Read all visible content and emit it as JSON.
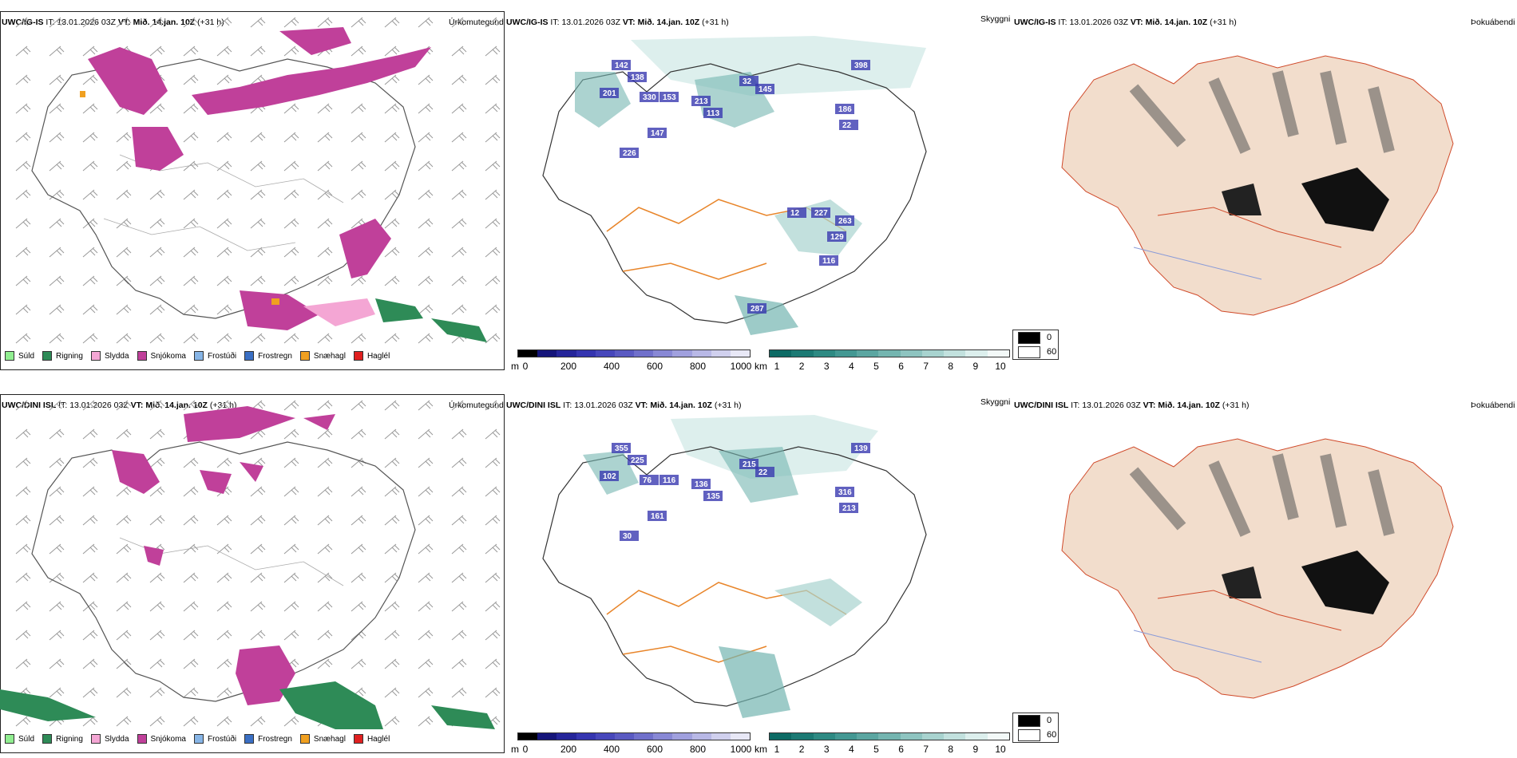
{
  "rows": [
    {
      "model": "UWC/IG-IS",
      "init_label": "IT:",
      "init_time": "13.01.2026 03Z",
      "valid_label": "VT:",
      "valid_time": "Mið. 14.jan. 10Z",
      "lead": "(+31 h)",
      "precip_title": "Úrkomutegund",
      "vis_title": "Skyggni",
      "fog_title": "Þokuábendi",
      "vis_values": [
        "142",
        "138",
        "330",
        "153",
        "201",
        "147",
        "226",
        "213",
        "113",
        "32",
        "145",
        "398",
        "186",
        "22",
        "12",
        "227",
        "263",
        "129",
        "116",
        "287"
      ]
    },
    {
      "model": "UWC/DINI ISL",
      "init_label": "IT:",
      "init_time": "13.01.2026 03Z",
      "valid_label": "VT:",
      "valid_time": "Mið. 14.jan. 10Z",
      "lead": "(+31 h)",
      "precip_title": "Úrkomutegund",
      "vis_title": "Skyggni",
      "fog_title": "Þokuábendi",
      "vis_values": [
        "355",
        "225",
        "76",
        "116",
        "102",
        "161",
        "30",
        "136",
        "135",
        "215",
        "22",
        "139",
        "316",
        "213"
      ]
    }
  ],
  "precip_legend": [
    {
      "label": "Súld",
      "color": "#90ee90"
    },
    {
      "label": "Rigning",
      "color": "#2e8b57"
    },
    {
      "label": "Slydda",
      "color": "#f4a6d4"
    },
    {
      "label": "Snjókoma",
      "color": "#c0409a"
    },
    {
      "label": "Frostúði",
      "color": "#87b5e6"
    },
    {
      "label": "Frostregn",
      "color": "#3a6fc4"
    },
    {
      "label": "Snæhagl",
      "color": "#f0a020"
    },
    {
      "label": "Haglél",
      "color": "#e02020"
    }
  ],
  "ceiling_bar": {
    "unit": "m",
    "ticks": [
      "0",
      "200",
      "400",
      "600",
      "800",
      "1000"
    ],
    "colors": [
      "#000000",
      "#15157a",
      "#25259a",
      "#3535b0",
      "#4747bb",
      "#5a5ac2",
      "#7070cb",
      "#8888d5",
      "#a0a0de",
      "#b8b8e6",
      "#d0d0ee",
      "#e8e8f6"
    ]
  },
  "visibility_bar": {
    "unit": "km",
    "ticks": [
      "1",
      "2",
      "3",
      "4",
      "5",
      "6",
      "7",
      "8",
      "9",
      "10"
    ],
    "colors": [
      "#0d6b65",
      "#1c7a74",
      "#2e8a83",
      "#439893",
      "#5ba6a1",
      "#74b5b0",
      "#8ec4c0",
      "#a8d3cf",
      "#c2e1de",
      "#dcefed",
      "#f3f9f8"
    ]
  },
  "fog_legend": [
    {
      "value": "0",
      "color": "#000000"
    },
    {
      "value": "60",
      "color": "#ffffff"
    }
  ]
}
